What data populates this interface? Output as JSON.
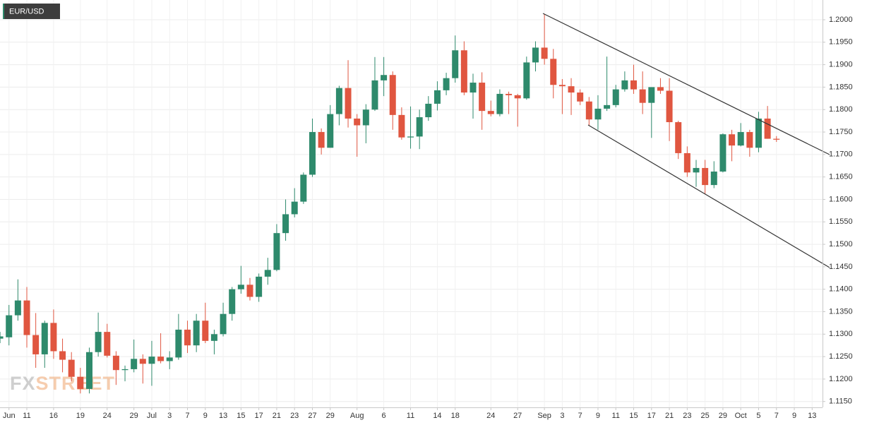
{
  "chart_data": {
    "type": "candlestick",
    "title": "EUR/USD",
    "watermark": [
      "FX",
      "STREET"
    ],
    "up_color": "#2e8a6c",
    "down_color": "#e05640",
    "grid": true,
    "ylim": [
      1.1137,
      1.2044
    ],
    "yticks": [
      {
        "value": 1.115,
        "label": "1.1150"
      },
      {
        "value": 1.12,
        "label": "1.1200"
      },
      {
        "value": 1.125,
        "label": "1.1250"
      },
      {
        "value": 1.13,
        "label": "1.1300"
      },
      {
        "value": 1.135,
        "label": "1.1350"
      },
      {
        "value": 1.14,
        "label": "1.1400"
      },
      {
        "value": 1.145,
        "label": "1.1450"
      },
      {
        "value": 1.15,
        "label": "1.1500"
      },
      {
        "value": 1.155,
        "label": "1.1550"
      },
      {
        "value": 1.16,
        "label": "1.1600"
      },
      {
        "value": 1.165,
        "label": "1.1650"
      },
      {
        "value": 1.17,
        "label": "1.1700"
      },
      {
        "value": 1.175,
        "label": "1.1750"
      },
      {
        "value": 1.18,
        "label": "1.1800"
      },
      {
        "value": 1.185,
        "label": "1.1850"
      },
      {
        "value": 1.19,
        "label": "1.1900"
      },
      {
        "value": 1.195,
        "label": "1.1950"
      },
      {
        "value": 1.2,
        "label": "1.2000"
      }
    ],
    "categories": [
      null,
      "Jun",
      null,
      "11",
      null,
      null,
      "16",
      null,
      null,
      "19",
      null,
      null,
      "24",
      null,
      null,
      "29",
      null,
      "Jul",
      null,
      "3",
      null,
      "7",
      null,
      "9",
      null,
      "13",
      null,
      "15",
      null,
      "17",
      null,
      "21",
      null,
      "23",
      null,
      "27",
      null,
      "29",
      null,
      null,
      "Aug",
      null,
      null,
      "6",
      null,
      null,
      "11",
      null,
      null,
      "14",
      null,
      "18",
      null,
      null,
      null,
      "24",
      null,
      null,
      "27",
      null,
      null,
      "Sep",
      null,
      "3",
      null,
      "7",
      null,
      "9",
      null,
      "11",
      null,
      "15",
      null,
      "17",
      null,
      "21",
      null,
      "23",
      null,
      "25",
      null,
      "29",
      null,
      "Oct",
      null,
      "5",
      null,
      "7",
      null,
      "9",
      null,
      "13",
      null
    ],
    "open": [
      1.129,
      1.1293,
      1.1342,
      1.1375,
      1.1298,
      1.1255,
      1.1325,
      1.1262,
      1.1243,
      1.1205,
      1.1178,
      1.126,
      1.1305,
      1.1252,
      1.122,
      1.1222,
      1.1245,
      1.1234,
      1.125,
      1.124,
      1.1248,
      1.131,
      1.1275,
      1.133,
      1.1285,
      1.13,
      1.1345,
      1.14,
      1.141,
      1.1383,
      1.1428,
      1.1443,
      1.1525,
      1.1567,
      1.1595,
      1.1655,
      1.175,
      1.1715,
      1.179,
      1.1848,
      1.178,
      1.1765,
      1.18,
      1.1865,
      1.1877,
      1.1788,
      1.1738,
      1.174,
      1.1783,
      1.1813,
      1.1843,
      1.187,
      1.1932,
      1.1838,
      1.186,
      1.1797,
      1.179,
      1.1835,
      1.1832,
      1.1825,
      1.1905,
      1.1938,
      1.1913,
      1.1855,
      1.1852,
      1.1838,
      1.1818,
      1.1778,
      1.1802,
      1.181,
      1.1845,
      1.1865,
      1.1845,
      1.1815,
      1.185,
      1.1842,
      1.1772,
      1.1703,
      1.166,
      1.167,
      1.1632,
      1.1662,
      1.1745,
      1.172,
      1.175,
      1.1715,
      1.178,
      1.1735,
      null,
      null,
      null,
      null,
      null
    ],
    "high": [
      1.1305,
      1.1365,
      1.1422,
      1.1405,
      1.1347,
      1.133,
      1.1355,
      1.129,
      1.126,
      1.1225,
      1.127,
      1.1348,
      1.1323,
      1.1262,
      1.123,
      1.1288,
      1.1255,
      1.1285,
      1.1302,
      1.1262,
      1.1345,
      1.133,
      1.1345,
      1.137,
      1.131,
      1.137,
      1.1405,
      1.1452,
      1.1425,
      1.1435,
      1.147,
      1.1545,
      1.16,
      1.1625,
      1.166,
      1.178,
      1.1758,
      1.181,
      1.1853,
      1.191,
      1.179,
      1.1812,
      1.1917,
      1.1917,
      1.1885,
      1.1805,
      1.1807,
      1.18,
      1.183,
      1.1863,
      1.1882,
      1.1965,
      1.1952,
      1.188,
      1.1883,
      1.182,
      1.1845,
      1.184,
      1.1835,
      1.1918,
      1.1952,
      1.2012,
      1.1935,
      1.1868,
      1.187,
      1.1845,
      1.1828,
      1.1832,
      1.1918,
      1.1855,
      1.1885,
      1.19,
      1.1885,
      1.185,
      1.187,
      1.187,
      1.1775,
      1.1718,
      1.1688,
      1.1688,
      1.1685,
      1.1747,
      1.1755,
      1.177,
      1.1755,
      1.1795,
      1.1808,
      1.1741,
      null,
      null,
      null,
      null,
      null
    ],
    "low": [
      1.128,
      1.1275,
      1.133,
      1.127,
      1.1225,
      1.1225,
      1.1245,
      1.1215,
      1.1195,
      1.1168,
      1.1168,
      1.125,
      1.1248,
      1.1187,
      1.1195,
      1.1215,
      1.119,
      1.1185,
      1.1235,
      1.1222,
      1.1243,
      1.1258,
      1.126,
      1.128,
      1.1255,
      1.1295,
      1.133,
      1.139,
      1.1375,
      1.1372,
      1.141,
      1.144,
      1.1508,
      1.156,
      1.159,
      1.165,
      1.17,
      1.1715,
      1.1765,
      1.176,
      1.1695,
      1.1725,
      1.1797,
      1.183,
      1.1755,
      1.1733,
      1.1713,
      1.1712,
      1.1775,
      1.1798,
      1.1832,
      1.186,
      1.1832,
      1.178,
      1.1755,
      1.1785,
      1.1785,
      1.179,
      1.1762,
      1.1822,
      1.1885,
      1.19,
      1.1825,
      1.179,
      1.1788,
      1.181,
      1.1765,
      1.1755,
      1.1797,
      1.1805,
      1.184,
      1.1835,
      1.179,
      1.1737,
      1.1835,
      1.173,
      1.169,
      1.165,
      1.1628,
      1.1612,
      1.1625,
      1.166,
      1.1685,
      1.1718,
      1.1695,
      1.1705,
      1.1735,
      1.1728,
      null,
      null,
      null,
      null,
      null
    ],
    "close": [
      1.1295,
      1.1342,
      1.1375,
      1.1298,
      1.1255,
      1.1325,
      1.1262,
      1.1243,
      1.1205,
      1.1178,
      1.126,
      1.1305,
      1.1252,
      1.122,
      1.1222,
      1.1245,
      1.1234,
      1.125,
      1.124,
      1.1248,
      1.131,
      1.1275,
      1.133,
      1.1285,
      1.13,
      1.1345,
      1.14,
      1.141,
      1.1383,
      1.1428,
      1.1443,
      1.1525,
      1.1567,
      1.1595,
      1.1655,
      1.175,
      1.1715,
      1.179,
      1.1848,
      1.178,
      1.1765,
      1.18,
      1.1865,
      1.1877,
      1.1788,
      1.1738,
      1.174,
      1.1783,
      1.1813,
      1.1843,
      1.187,
      1.1932,
      1.1838,
      1.186,
      1.1797,
      1.179,
      1.1835,
      1.1832,
      1.1825,
      1.1905,
      1.1938,
      1.1913,
      1.1855,
      1.1852,
      1.1838,
      1.1818,
      1.1778,
      1.1802,
      1.181,
      1.1845,
      1.1865,
      1.1845,
      1.1815,
      1.185,
      1.1842,
      1.1772,
      1.1703,
      1.166,
      1.167,
      1.1632,
      1.1662,
      1.1745,
      1.172,
      1.175,
      1.1715,
      1.178,
      1.1735,
      1.1733,
      null,
      null,
      null,
      null,
      null
    ]
  }
}
